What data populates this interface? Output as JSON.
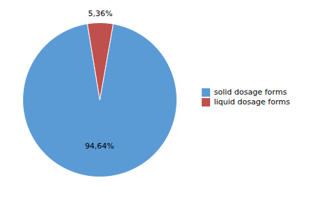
{
  "chart_data": {
    "type": "pie",
    "categories": [
      "solid dosage forms",
      "liquid dosage forms"
    ],
    "values": [
      94.64,
      5.36
    ],
    "value_labels": [
      "94,64%",
      "5,36%"
    ],
    "colors": [
      "#5b9bd5",
      "#c0504d"
    ],
    "data_labels": true,
    "legend": "right"
  }
}
